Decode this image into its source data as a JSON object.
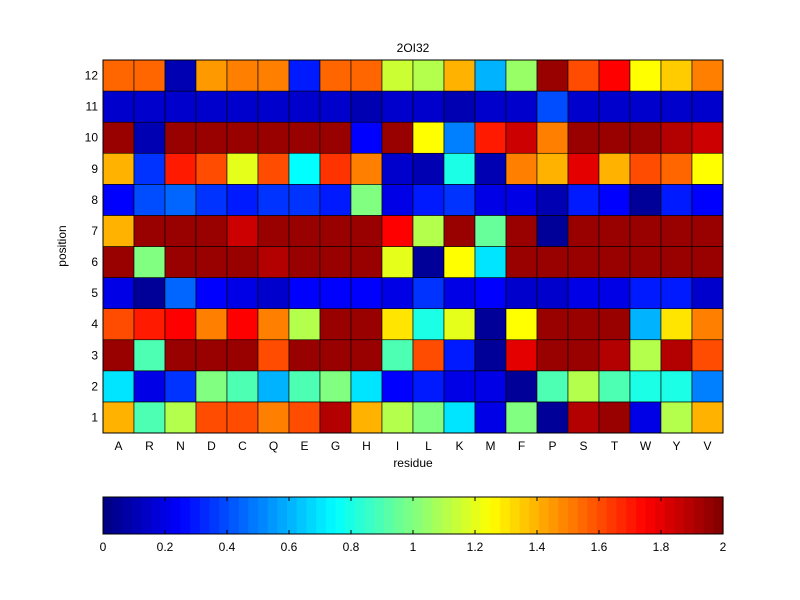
{
  "chart_data": {
    "type": "heatmap",
    "title": "2OI32",
    "xlabel": "residue",
    "ylabel": "position",
    "x_categories": [
      "A",
      "R",
      "N",
      "D",
      "C",
      "Q",
      "E",
      "G",
      "H",
      "I",
      "L",
      "K",
      "M",
      "F",
      "P",
      "S",
      "T",
      "W",
      "Y",
      "V"
    ],
    "y_categories": [
      "1",
      "2",
      "3",
      "4",
      "5",
      "6",
      "7",
      "8",
      "9",
      "10",
      "11",
      "12"
    ],
    "values": [
      [
        1.4,
        0.9,
        1.1,
        1.6,
        1.6,
        1.5,
        1.6,
        1.9,
        1.4,
        1.1,
        1.0,
        0.7,
        0.2,
        1.0,
        0.05,
        1.9,
        1.95,
        0.2,
        1.1,
        1.4
      ],
      [
        0.7,
        0.2,
        0.35,
        1.0,
        0.9,
        0.6,
        0.9,
        1.0,
        0.7,
        0.25,
        0.3,
        0.2,
        0.2,
        0.05,
        0.9,
        1.1,
        0.9,
        0.8,
        0.8,
        0.5
      ],
      [
        1.95,
        0.9,
        1.95,
        1.95,
        1.95,
        1.6,
        1.95,
        1.95,
        1.95,
        0.9,
        1.6,
        0.3,
        0.05,
        1.8,
        1.95,
        1.95,
        1.9,
        1.1,
        1.9,
        1.6
      ],
      [
        1.6,
        1.7,
        1.75,
        1.5,
        1.75,
        1.5,
        1.1,
        1.95,
        1.95,
        1.3,
        0.8,
        1.2,
        0.05,
        1.25,
        1.95,
        1.95,
        1.95,
        0.6,
        1.3,
        1.5
      ],
      [
        0.2,
        0.05,
        0.45,
        0.25,
        0.2,
        0.15,
        0.25,
        0.25,
        0.25,
        0.2,
        0.35,
        0.2,
        0.25,
        0.15,
        0.15,
        0.2,
        0.2,
        0.3,
        0.3,
        0.15
      ],
      [
        1.95,
        1.0,
        1.95,
        1.95,
        1.95,
        1.9,
        1.95,
        1.95,
        1.95,
        1.2,
        0.05,
        1.25,
        0.7,
        1.95,
        1.95,
        1.95,
        1.95,
        1.95,
        1.95,
        1.95
      ],
      [
        1.4,
        1.95,
        1.95,
        1.95,
        1.85,
        1.95,
        1.95,
        1.95,
        1.95,
        1.75,
        1.1,
        1.95,
        0.95,
        1.95,
        0.05,
        1.95,
        1.95,
        1.95,
        1.95,
        1.95
      ],
      [
        0.25,
        0.4,
        0.45,
        0.35,
        0.3,
        0.35,
        0.35,
        0.3,
        1.0,
        0.2,
        0.3,
        0.35,
        0.2,
        0.2,
        0.1,
        0.3,
        0.25,
        0.05,
        0.3,
        0.25
      ],
      [
        1.4,
        0.35,
        1.7,
        1.6,
        1.2,
        1.6,
        0.75,
        1.65,
        1.5,
        0.15,
        0.1,
        0.8,
        0.1,
        1.5,
        1.4,
        1.8,
        1.4,
        1.6,
        1.55,
        1.25
      ],
      [
        1.95,
        0.1,
        1.95,
        1.95,
        1.95,
        1.95,
        1.95,
        1.95,
        0.25,
        1.95,
        1.25,
        0.5,
        1.7,
        1.85,
        1.5,
        1.95,
        1.95,
        1.95,
        1.9,
        1.85
      ],
      [
        0.15,
        0.15,
        0.15,
        0.15,
        0.15,
        0.15,
        0.15,
        0.15,
        0.1,
        0.15,
        0.15,
        0.1,
        0.15,
        0.15,
        0.4,
        0.15,
        0.15,
        0.15,
        0.15,
        0.15
      ],
      [
        1.55,
        1.55,
        0.1,
        1.45,
        1.5,
        1.5,
        0.3,
        1.55,
        1.55,
        1.15,
        1.1,
        1.4,
        0.6,
        1.05,
        1.95,
        1.6,
        1.75,
        1.25,
        1.35,
        1.5
      ]
    ],
    "colormap": "jet",
    "vmin": 0,
    "vmax": 2,
    "colorbar_ticks": [
      "0",
      "0.2",
      "0.4",
      "0.6",
      "0.8",
      "1",
      "1.2",
      "1.4",
      "1.6",
      "1.8",
      "2"
    ],
    "colorbar_orientation": "horizontal-bottom"
  }
}
